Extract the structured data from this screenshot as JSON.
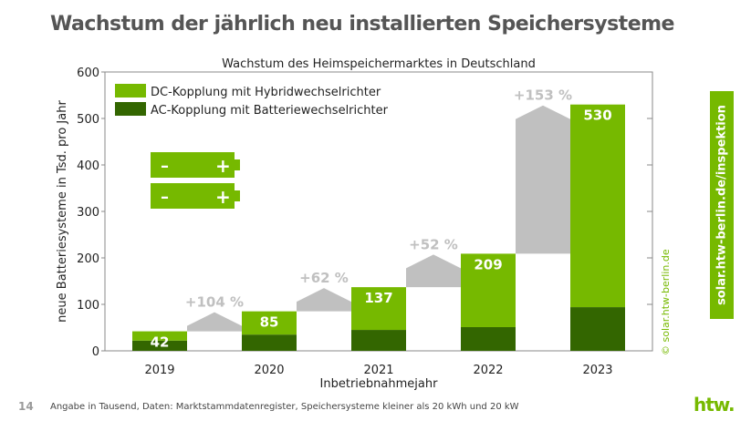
{
  "page": {
    "title": "Wachstum der jährlich neu installierten Speichersysteme",
    "page_number": "14",
    "footnote": "Angabe in Tausend, Daten: Marktstammdatenregister, Speichersysteme kleiner als 20 kWh und 20 kW",
    "url_banner": "solar.htw-berlin.de/inspektion",
    "copyright": "© solar.htw-berlin.de",
    "logo": "htw."
  },
  "colors": {
    "dc": "#76b900",
    "ac": "#336600",
    "growth": "#c0c0c0"
  },
  "chart_data": {
    "type": "bar",
    "stacked": true,
    "title": "Wachstum des Heimspeichermarktes in Deutschland",
    "xlabel": "Inbetriebnahmejahr",
    "ylabel": "neue Batteriesysteme in Tsd. pro Jahr",
    "ylim": [
      0,
      600
    ],
    "yticks": [
      0,
      100,
      200,
      300,
      400,
      500,
      600
    ],
    "categories": [
      "2019",
      "2020",
      "2021",
      "2022",
      "2023"
    ],
    "series": [
      {
        "name": "AC-Kopplung mit Batteriewechselrichter",
        "values": [
          22,
          35,
          45,
          51,
          94
        ]
      },
      {
        "name": "DC-Kopplung mit Hybridwechselrichter",
        "values": [
          20,
          50,
          92,
          158,
          436
        ]
      }
    ],
    "totals": [
      42,
      85,
      137,
      209,
      530
    ],
    "growth_labels": [
      "+104 %",
      "+62 %",
      "+52 %",
      "+153 %"
    ],
    "legend": "top-left"
  }
}
